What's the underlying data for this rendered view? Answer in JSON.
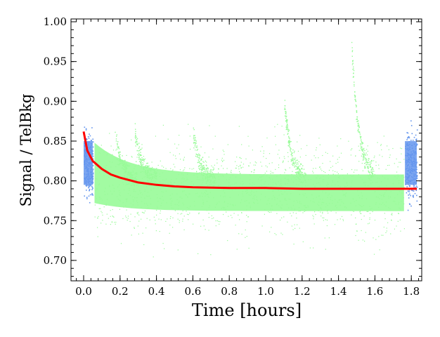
{
  "chart_data": {
    "type": "scatter",
    "xlabel": "Time [hours]",
    "ylabel": "Signal / TelBkg",
    "xlim": [
      -0.05,
      1.87
    ],
    "ylim": [
      0.675,
      1.0
    ],
    "xticks": [
      "0.0",
      "0.2",
      "0.4",
      "0.6",
      "0.8",
      "1.0",
      "1.2",
      "1.4",
      "1.6",
      "1.8"
    ],
    "yticks": [
      "0.70",
      "0.75",
      "0.80",
      "0.85",
      "0.90",
      "0.95",
      "1.00"
    ],
    "grid": false,
    "legend": "none",
    "series": [
      {
        "role": "out-of-transit scatter",
        "color": "#6495ed",
        "x_ranges": [
          [
            0.0,
            0.05
          ],
          [
            1.765,
            1.83
          ]
        ],
        "center": 0.82,
        "spread": [
          0.745,
          0.9
        ]
      },
      {
        "role": "in-transit scatter",
        "color": "#98fb98",
        "x_range": [
          0.06,
          1.76
        ],
        "center": 0.79,
        "spread": [
          0.75,
          0.84
        ],
        "spikes_at": [
          0.17,
          0.28,
          0.6,
          1.1,
          1.47
        ]
      },
      {
        "role": "model fit",
        "color": "#ff0000",
        "x": [
          0.0,
          0.02,
          0.05,
          0.1,
          0.15,
          0.2,
          0.3,
          0.4,
          0.5,
          0.6,
          0.8,
          1.0,
          1.2,
          1.4,
          1.6,
          1.83
        ],
        "y": [
          0.862,
          0.838,
          0.825,
          0.815,
          0.808,
          0.804,
          0.798,
          0.795,
          0.793,
          0.792,
          0.791,
          0.791,
          0.79,
          0.79,
          0.79,
          0.79
        ]
      }
    ]
  }
}
